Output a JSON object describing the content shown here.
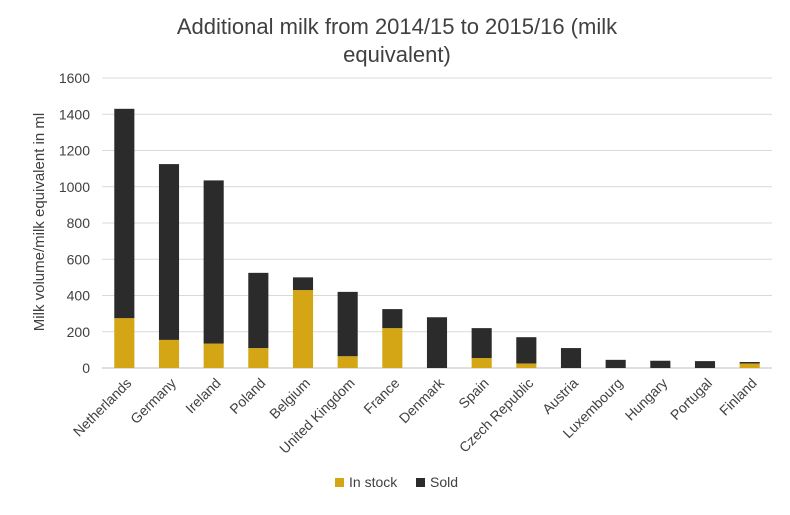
{
  "chart_data": {
    "type": "bar",
    "stacked": true,
    "title": "Additional milk from 2014/15 to 2015/16 (milk equivalent)",
    "title_lines": [
      "Additional milk from 2014/15 to 2015/16 (milk",
      "equivalent)"
    ],
    "xlabel": "",
    "ylabel": "Milk volume/milk equivalent in ml",
    "ylim": [
      0,
      1600
    ],
    "yticks": [
      0,
      200,
      400,
      600,
      800,
      1000,
      1200,
      1400,
      1600
    ],
    "grid": true,
    "legend_position": "bottom",
    "categories": [
      "Netherlands",
      "Germany",
      "Ireland",
      "Poland",
      "Belgium",
      "United Kingdom",
      "France",
      "Denmark",
      "Spain",
      "Czech Republic",
      "Austria",
      "Luxembourg",
      "Hungary",
      "Portugal",
      "Finland"
    ],
    "series": [
      {
        "name": "In stock",
        "color": "#d4a514",
        "values": [
          275,
          155,
          135,
          110,
          430,
          65,
          220,
          0,
          55,
          25,
          0,
          0,
          0,
          0,
          25
        ]
      },
      {
        "name": "Sold",
        "color": "#2b2b2b",
        "values": [
          1155,
          970,
          900,
          415,
          70,
          355,
          105,
          280,
          165,
          145,
          110,
          45,
          40,
          38,
          8
        ]
      }
    ]
  }
}
